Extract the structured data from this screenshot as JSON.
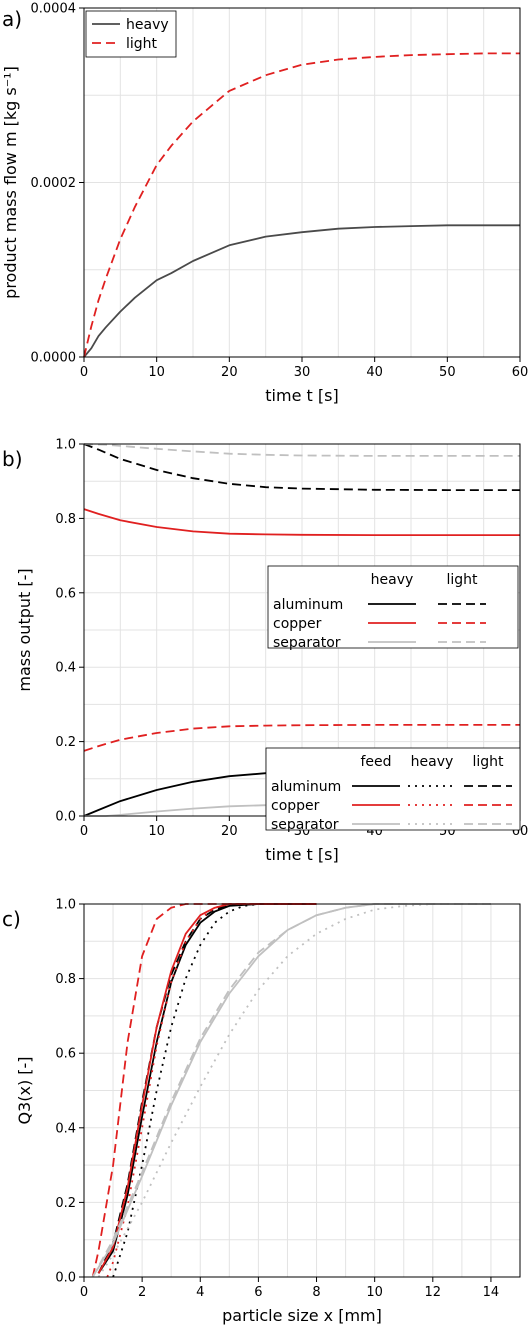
{
  "chart_data": [
    {
      "panel": "a)",
      "type": "line",
      "xlabel": "time t [s]",
      "ylabel": "product mass flow m [kg s⁻¹]",
      "xlim": [
        0,
        60
      ],
      "ylim": [
        0,
        0.0004
      ],
      "xticks": [
        "0",
        "10",
        "20",
        "30",
        "40",
        "50",
        "60"
      ],
      "yticks": [
        "0.0000",
        "0.0002",
        "0.0004"
      ],
      "grid": true,
      "legend": "top-left",
      "series": [
        {
          "name": "heavy",
          "color": "#4a4a4a",
          "dash": "solid",
          "x": [
            0,
            1,
            2,
            3,
            5,
            7,
            10,
            12,
            15,
            20,
            25,
            30,
            35,
            40,
            45,
            50,
            55,
            60
          ],
          "y": [
            0.0,
            1e-05,
            2.4e-05,
            3.4e-05,
            5.2e-05,
            6.8e-05,
            8.8e-05,
            9.6e-05,
            0.00011,
            0.000128,
            0.000138,
            0.000143,
            0.000147,
            0.000149,
            0.00015,
            0.000151,
            0.000151,
            0.000151
          ]
        },
        {
          "name": "light",
          "color": "#e02020",
          "dash": "dashed",
          "x": [
            0,
            1,
            2,
            3,
            5,
            7,
            10,
            12,
            15,
            20,
            25,
            30,
            35,
            40,
            45,
            50,
            55,
            60
          ],
          "y": [
            0.0,
            3.5e-05,
            6.5e-05,
            9e-05,
            0.000135,
            0.000172,
            0.00022,
            0.000242,
            0.00027,
            0.000305,
            0.000323,
            0.000335,
            0.000341,
            0.000344,
            0.000346,
            0.000347,
            0.000348,
            0.000348
          ]
        }
      ]
    },
    {
      "panel": "b)",
      "type": "line",
      "xlabel": "time t [s]",
      "ylabel": "mass output [-]",
      "xlim": [
        0,
        60
      ],
      "ylim": [
        0,
        1.0
      ],
      "xticks": [
        "0",
        "10",
        "20",
        "30",
        "40",
        "50",
        "60"
      ],
      "yticks": [
        "0.0",
        "0.2",
        "0.4",
        "0.6",
        "0.8",
        "1.0"
      ],
      "grid": true,
      "legend": "center-right",
      "legend_columns": [
        "heavy",
        "light"
      ],
      "legend_rows": [
        "aluminum",
        "copper",
        "separator"
      ],
      "series": [
        {
          "name": "aluminum heavy",
          "color": "#000000",
          "dash": "solid",
          "x": [
            0,
            2,
            5,
            10,
            15,
            20,
            25,
            30,
            40,
            50,
            60
          ],
          "y": [
            0.0,
            0.016,
            0.04,
            0.07,
            0.092,
            0.107,
            0.115,
            0.12,
            0.123,
            0.124,
            0.124
          ]
        },
        {
          "name": "aluminum light",
          "color": "#000000",
          "dash": "dashed",
          "x": [
            0,
            2,
            5,
            10,
            15,
            20,
            25,
            30,
            40,
            50,
            60
          ],
          "y": [
            1.0,
            0.985,
            0.96,
            0.93,
            0.908,
            0.893,
            0.884,
            0.88,
            0.877,
            0.876,
            0.876
          ]
        },
        {
          "name": "copper heavy",
          "color": "#e02020",
          "dash": "solid",
          "x": [
            0,
            2,
            5,
            10,
            15,
            20,
            25,
            30,
            40,
            50,
            60
          ],
          "y": [
            0.825,
            0.812,
            0.795,
            0.777,
            0.765,
            0.759,
            0.757,
            0.756,
            0.755,
            0.755,
            0.755
          ]
        },
        {
          "name": "copper light",
          "color": "#e02020",
          "dash": "dashed",
          "x": [
            0,
            2,
            5,
            10,
            15,
            20,
            25,
            30,
            40,
            50,
            60
          ],
          "y": [
            0.175,
            0.188,
            0.205,
            0.223,
            0.235,
            0.241,
            0.243,
            0.244,
            0.245,
            0.245,
            0.245
          ]
        },
        {
          "name": "separator heavy",
          "color": "#c0c0c0",
          "dash": "solid",
          "x": [
            0,
            3,
            5,
            10,
            15,
            20,
            25,
            30,
            40,
            50,
            60
          ],
          "y": [
            0.0,
            0.0,
            0.003,
            0.012,
            0.02,
            0.026,
            0.029,
            0.031,
            0.032,
            0.032,
            0.032
          ]
        },
        {
          "name": "separator light",
          "color": "#c0c0c0",
          "dash": "dashed",
          "x": [
            0,
            3,
            5,
            10,
            15,
            20,
            25,
            30,
            40,
            50,
            60
          ],
          "y": [
            1.0,
            0.998,
            0.995,
            0.987,
            0.98,
            0.974,
            0.971,
            0.969,
            0.968,
            0.968,
            0.968
          ]
        }
      ]
    },
    {
      "panel": "c)",
      "type": "line",
      "xlabel": "particle size x [mm]",
      "ylabel": "Q3(x) [-]",
      "xlim": [
        0,
        15
      ],
      "ylim": [
        0,
        1.0
      ],
      "xticks": [
        "0",
        "2",
        "4",
        "6",
        "8",
        "10",
        "12",
        "14"
      ],
      "yticks": [
        "0.0",
        "0.2",
        "0.4",
        "0.6",
        "0.8",
        "1.0"
      ],
      "grid": true,
      "legend": "center-right",
      "legend_columns": [
        "feed",
        "heavy",
        "light"
      ],
      "legend_rows": [
        "aluminum",
        "copper",
        "separator"
      ],
      "series": [
        {
          "name": "aluminum feed",
          "color": "#000000",
          "dash": "solid",
          "x": [
            0.5,
            1.0,
            1.5,
            2.0,
            2.5,
            3.0,
            3.5,
            4.0,
            4.5,
            5.0,
            6.0,
            8.0
          ],
          "y": [
            0.01,
            0.07,
            0.22,
            0.43,
            0.63,
            0.79,
            0.89,
            0.95,
            0.98,
            0.995,
            1.0,
            1.0
          ]
        },
        {
          "name": "aluminum heavy",
          "color": "#000000",
          "dash": "dotted",
          "x": [
            1.0,
            1.5,
            2.0,
            2.5,
            3.0,
            3.5,
            4.0,
            4.5,
            5.0,
            5.5,
            6.0,
            8.0
          ],
          "y": [
            0.0,
            0.12,
            0.3,
            0.5,
            0.67,
            0.8,
            0.89,
            0.95,
            0.98,
            0.995,
            1.0,
            1.0
          ]
        },
        {
          "name": "aluminum light",
          "color": "#000000",
          "dash": "dashed",
          "x": [
            0.5,
            1.0,
            1.5,
            2.0,
            2.5,
            3.0,
            3.5,
            4.0,
            4.5,
            5.0,
            6.0,
            8.0
          ],
          "y": [
            0.01,
            0.09,
            0.25,
            0.47,
            0.67,
            0.81,
            0.9,
            0.96,
            0.985,
            0.997,
            1.0,
            1.0
          ]
        },
        {
          "name": "copper feed",
          "color": "#e02020",
          "dash": "solid",
          "x": [
            0.5,
            1.0,
            1.5,
            2.0,
            2.5,
            3.0,
            3.5,
            4.0,
            4.5,
            5.0,
            6.0,
            8.0
          ],
          "y": [
            0.01,
            0.08,
            0.24,
            0.46,
            0.67,
            0.82,
            0.92,
            0.97,
            0.99,
            1.0,
            1.0,
            1.0
          ]
        },
        {
          "name": "copper heavy",
          "color": "#e02020",
          "dash": "dotted",
          "x": [
            0.8,
            1.0,
            1.5,
            2.0,
            2.5,
            3.0,
            3.5,
            4.0,
            4.5,
            5.0,
            6.0,
            8.0
          ],
          "y": [
            0.0,
            0.04,
            0.19,
            0.4,
            0.62,
            0.79,
            0.9,
            0.96,
            0.99,
            1.0,
            1.0,
            1.0
          ]
        },
        {
          "name": "copper light",
          "color": "#e02020",
          "dash": "dashed",
          "x": [
            0.3,
            0.5,
            1.0,
            1.5,
            2.0,
            2.5,
            3.0,
            3.5,
            4.0,
            6.0,
            8.0
          ],
          "y": [
            0.0,
            0.07,
            0.3,
            0.63,
            0.86,
            0.96,
            0.99,
            1.0,
            1.0,
            1.0,
            1.0
          ]
        },
        {
          "name": "separator feed",
          "color": "#c0c0c0",
          "dash": "solid",
          "x": [
            0.3,
            1.0,
            2.0,
            3.0,
            4.0,
            5.0,
            6.0,
            7.0,
            8.0,
            9.0,
            10.0,
            11.0,
            12.0,
            14.0
          ],
          "y": [
            0.0,
            0.09,
            0.27,
            0.46,
            0.63,
            0.76,
            0.86,
            0.93,
            0.97,
            0.99,
            1.0,
            1.0,
            1.0,
            1.0
          ]
        },
        {
          "name": "separator heavy",
          "color": "#c0c0c0",
          "dash": "dotted",
          "x": [
            0.5,
            1.0,
            2.0,
            3.0,
            4.0,
            5.0,
            6.0,
            7.0,
            8.0,
            9.0,
            10.0,
            11.0,
            12.0,
            14.0
          ],
          "y": [
            0.0,
            0.06,
            0.2,
            0.36,
            0.51,
            0.65,
            0.77,
            0.86,
            0.92,
            0.96,
            0.985,
            0.995,
            1.0,
            1.0
          ]
        },
        {
          "name": "separator light",
          "color": "#c0c0c0",
          "dash": "dashed",
          "x": [
            0.3,
            1.0,
            2.0,
            3.0,
            4.0,
            5.0,
            6.0,
            7.0,
            8.0,
            9.0,
            10.0,
            12.0,
            14.0
          ],
          "y": [
            0.0,
            0.1,
            0.28,
            0.47,
            0.64,
            0.77,
            0.87,
            0.93,
            0.97,
            0.99,
            1.0,
            1.0,
            1.0
          ]
        }
      ]
    }
  ]
}
